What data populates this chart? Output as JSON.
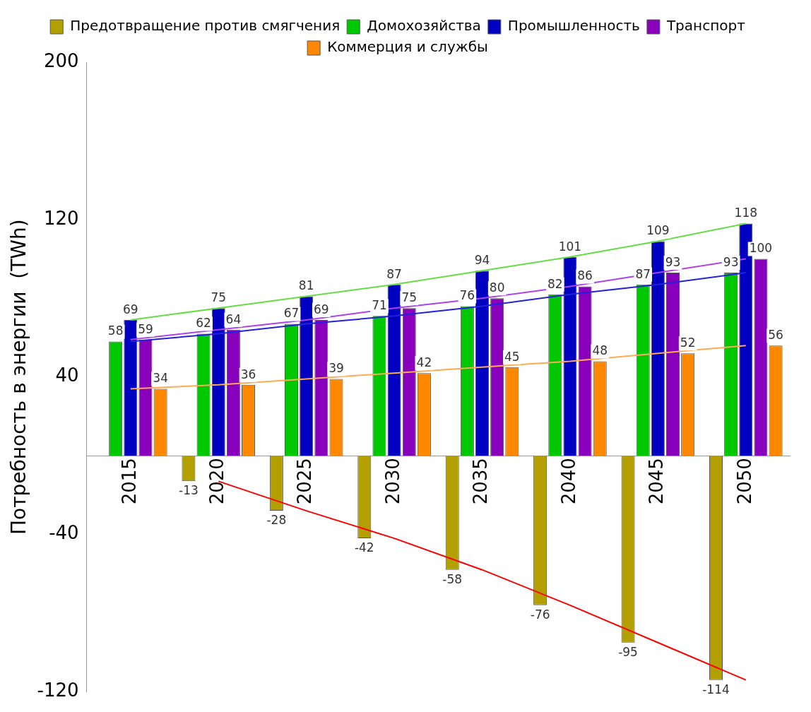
{
  "chart_data": {
    "type": "bar",
    "ylabel": "Потребность в энергии  (TWh)",
    "categories": [
      "2015",
      "2020",
      "2025",
      "2030",
      "2035",
      "2040",
      "2045",
      "2050"
    ],
    "series": [
      {
        "name": "Предотвращение против смягчения",
        "color": "#b3a000",
        "values": [
          null,
          -13,
          -28,
          -42,
          -58,
          -76,
          -95,
          -114
        ],
        "value_labels": [
          null,
          "-13",
          "-28",
          "-42",
          "-58",
          "-76",
          "-95",
          "-114"
        ]
      },
      {
        "name": "Домохозяйства",
        "color": "#00c800",
        "values": [
          58,
          62,
          67,
          71,
          76,
          82,
          87,
          93
        ],
        "value_labels": [
          "58",
          "62",
          "67",
          "71",
          "76",
          "82",
          "87",
          "93"
        ]
      },
      {
        "name": "Промышленность",
        "color": "#0000c0",
        "values": [
          69,
          75,
          81,
          87,
          94,
          101,
          109,
          118
        ],
        "value_labels": [
          "69",
          "75",
          "81",
          "87",
          "94",
          "101",
          "109",
          "118"
        ]
      },
      {
        "name": "Транспорт",
        "color": "#8800bb",
        "values": [
          59,
          64,
          69,
          75,
          80,
          86,
          93,
          100
        ],
        "value_labels": [
          "59",
          "64",
          "69",
          "75",
          "80",
          "86",
          "93",
          "100"
        ]
      },
      {
        "name": "Коммерция и службы",
        "color": "#ff8800",
        "values": [
          34,
          36,
          39,
          42,
          45,
          48,
          52,
          56
        ],
        "value_labels": [
          "34",
          "36",
          "39",
          "42",
          "45",
          "48",
          "52",
          "56"
        ]
      },
      {
        "type": "line",
        "color": "#66dd44",
        "values": [
          69,
          75,
          81,
          87,
          94,
          101,
          109,
          118
        ]
      },
      {
        "type": "line",
        "color": "#aa44ee",
        "values": [
          59,
          64,
          69,
          75,
          80,
          86,
          93,
          100
        ]
      },
      {
        "type": "line",
        "color": "#2222dd",
        "values": [
          58,
          62,
          67,
          71,
          76,
          82,
          87,
          93
        ]
      },
      {
        "type": "line",
        "color": "#ffaa55",
        "values": [
          34,
          36,
          39,
          42,
          45,
          48,
          52,
          56
        ]
      },
      {
        "type": "line",
        "color": "#ff0000",
        "values": [
          null,
          -13,
          -28,
          -42,
          -58,
          -76,
          -95,
          -114
        ]
      }
    ],
    "ylim": [
      -120,
      200
    ],
    "yticks": [
      -120,
      -40,
      40,
      120,
      200
    ],
    "grid": false,
    "legend": "top"
  }
}
